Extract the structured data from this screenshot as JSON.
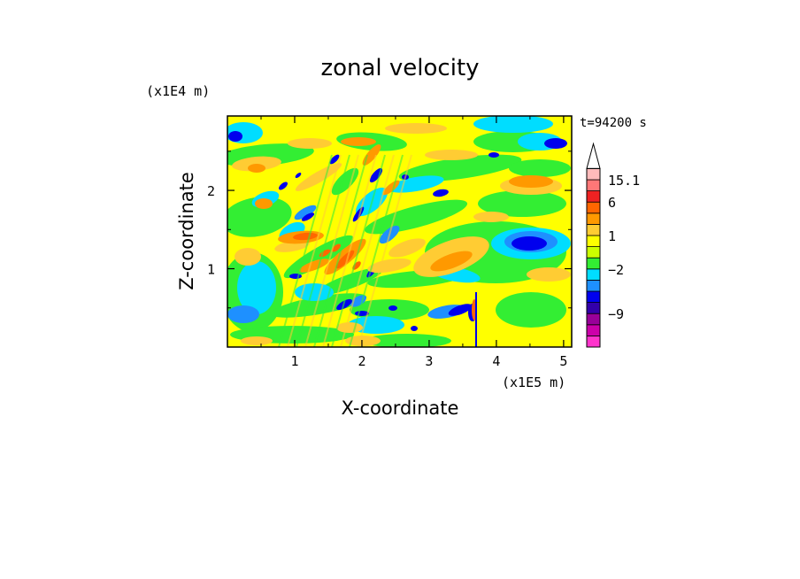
{
  "chart_data": {
    "type": "heatmap",
    "title": "zonal velocity",
    "xlabel": "X-coordinate",
    "ylabel": "Z-coordinate",
    "x_multiplier": "(x1E5 m)",
    "y_multiplier": "(x1E4 m)",
    "time_label": "t=94200 s",
    "xlim": [
      0,
      5.12
    ],
    "ylim": [
      0,
      2.95
    ],
    "x_ticks": [
      {
        "value": 1,
        "label": "1"
      },
      {
        "value": 2,
        "label": "2"
      },
      {
        "value": 3,
        "label": "3"
      },
      {
        "value": 4,
        "label": "4"
      },
      {
        "value": 5,
        "label": "5"
      }
    ],
    "y_ticks": [
      {
        "value": 1,
        "label": "1"
      },
      {
        "value": 2,
        "label": "2"
      }
    ],
    "colorbar": {
      "levels": [
        {
          "color": "#ff33cc"
        },
        {
          "color": "#cc00aa"
        },
        {
          "color": "#990099"
        },
        {
          "color": "#3300aa"
        },
        {
          "color": "#0000ee"
        },
        {
          "color": "#1e90ff"
        },
        {
          "color": "#00ddff"
        },
        {
          "color": "#33ee33"
        },
        {
          "color": "#ccff00"
        },
        {
          "color": "#ffff00"
        },
        {
          "color": "#ffcc33"
        },
        {
          "color": "#ff9900"
        },
        {
          "color": "#ff6600"
        },
        {
          "color": "#ee2222"
        },
        {
          "color": "#ff7777"
        },
        {
          "color": "#ffbbbb"
        }
      ],
      "labels": [
        {
          "text": "15.1",
          "level": 15
        },
        {
          "text": "6",
          "level": 13
        },
        {
          "text": "1",
          "level": 10
        },
        {
          "text": "-2",
          "level": 7
        },
        {
          "text": "-9",
          "level": 3
        }
      ],
      "extends_max": true
    },
    "field_colors": {
      "background": "#ffff00",
      "strong_negative": "#0000ee",
      "negative": "#1e90ff",
      "weak_negative": "#00ddff",
      "near_zero": "#33ee33",
      "weak_positive": "#ffcc33",
      "positive": "#ff9900",
      "strong_positive": "#ff6600"
    }
  }
}
